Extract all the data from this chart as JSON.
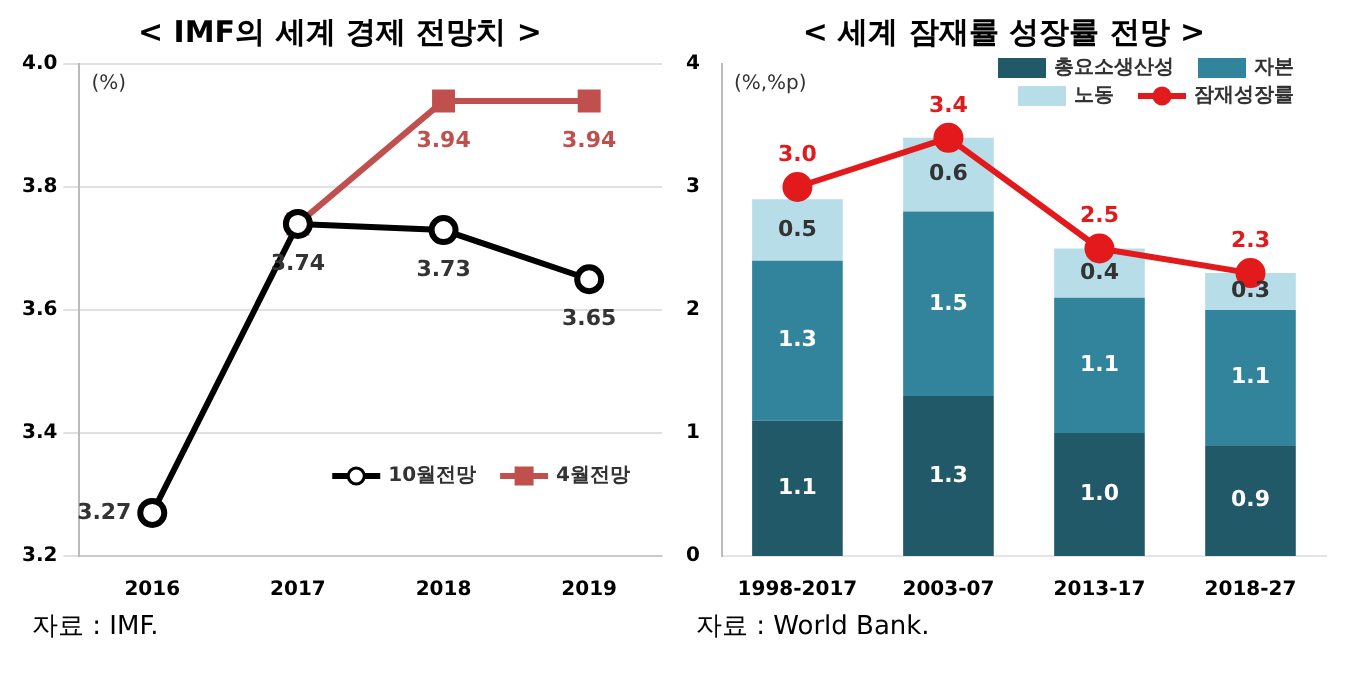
{
  "chart_data": [
    {
      "type": "line",
      "title": "< IMF의 세계 경제 전망치 >",
      "categories": [
        "2016",
        "2017",
        "2018",
        "2019"
      ],
      "series": [
        {
          "name": "10월전망",
          "color": "#000000",
          "marker": "circle",
          "values": [
            3.27,
            3.74,
            3.73,
            3.65
          ],
          "value_labels": [
            "3.27",
            "3.74",
            "3.73",
            "3.65"
          ]
        },
        {
          "name": "4월전망",
          "color": "#c0504d",
          "marker": "square",
          "values": [
            null,
            3.74,
            3.94,
            3.94
          ],
          "value_labels": [
            null,
            null,
            "3.94",
            "3.94"
          ]
        }
      ],
      "ylim": [
        3.2,
        4.0
      ],
      "yticks": [
        {
          "value": 3.2,
          "label": "3.2"
        },
        {
          "value": 3.4,
          "label": "3.4"
        },
        {
          "value": 3.6,
          "label": "3.6"
        },
        {
          "value": 3.8,
          "label": "3.8"
        },
        {
          "value": 4.0,
          "label": "4.0"
        }
      ],
      "grid": "y",
      "legend": "bottom right",
      "annotations": [
        {
          "text": "(%)"
        },
        {
          "text": "자료 : IMF."
        }
      ]
    },
    {
      "type": "bar",
      "title": "< 세계 잠재률 성장률 전망 >",
      "categories": [
        "1998-2017",
        "2003-07",
        "2013-17",
        "2018-27"
      ],
      "stacked": true,
      "series": [
        {
          "name": "총요소생산성",
          "color": "#215968",
          "values": [
            1.1,
            1.3,
            1.0,
            0.9
          ],
          "value_labels": [
            "1.1",
            "1.3",
            "1.0",
            "0.9"
          ]
        },
        {
          "name": "자본",
          "color": "#31849b",
          "values": [
            1.3,
            1.5,
            1.1,
            1.1
          ],
          "value_labels": [
            "1.3",
            "1.5",
            "1.1",
            "1.1"
          ]
        },
        {
          "name": "노동",
          "color": "#b7dde8",
          "values": [
            0.5,
            0.6,
            0.4,
            0.3
          ],
          "value_labels": [
            "0.5",
            "0.6",
            "0.4",
            "0.3"
          ]
        },
        {
          "name": "잠재성장률",
          "type": "line",
          "color": "#e31a1c",
          "marker": "circle",
          "values": [
            3.0,
            3.4,
            2.5,
            2.3
          ],
          "value_labels": [
            "3.0",
            "3.4",
            "2.5",
            "2.3"
          ]
        }
      ],
      "ylim": [
        0,
        4
      ],
      "yticks": [
        0,
        1,
        2,
        3,
        4
      ],
      "grid": false,
      "legend": "top right",
      "annotations": [
        {
          "text": "(%,%p)"
        },
        {
          "text": "자료 : World Bank."
        }
      ]
    }
  ]
}
